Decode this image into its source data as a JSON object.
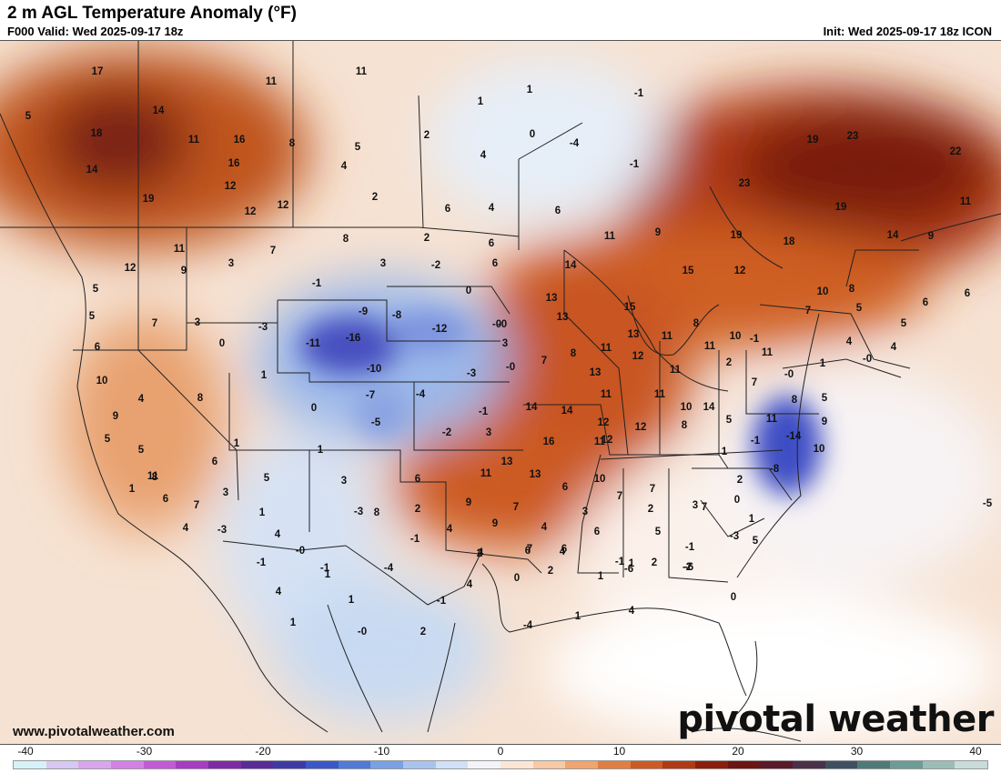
{
  "header": {
    "title": "2 m AGL Temperature Anomaly (°F)",
    "valid": "F000 Valid: Wed 2025-09-17 18z",
    "init": "Init: Wed 2025-09-17 18z ICON"
  },
  "footer": {
    "site": "www.pivotalweather.com",
    "logo": "pivotal weather"
  },
  "colorbar": {
    "ticks": [
      "-40",
      "-30",
      "-20",
      "-10",
      "0",
      "10",
      "20",
      "30",
      "40"
    ],
    "colors": [
      "#d6f2f8",
      "#d6c8f2",
      "#d9a6ee",
      "#d47fe6",
      "#c25ad8",
      "#a83bc2",
      "#7f2aa6",
      "#5a2a98",
      "#3d3aa8",
      "#3a58c8",
      "#4f7ad8",
      "#7aa0e6",
      "#a8c4ee",
      "#d0e0f6",
      "#f2f4f8",
      "#fbe6d6",
      "#f7c9a6",
      "#f0a46e",
      "#e27e40",
      "#cc5a24",
      "#b03a14",
      "#8c1e0e",
      "#6e1410",
      "#5a1a2a",
      "#4a3048",
      "#3e5060",
      "#4f7a78",
      "#6c9c94",
      "#9cbcb8",
      "#c8dcda"
    ]
  },
  "map_values": [
    {
      "v": "17"
    },
    {
      "v": "11"
    },
    {
      "v": "11"
    },
    {
      "v": "14"
    },
    {
      "v": "5"
    },
    {
      "v": "18"
    },
    {
      "v": "11"
    },
    {
      "v": "16"
    },
    {
      "v": "8"
    },
    {
      "v": "5"
    },
    {
      "v": "16"
    },
    {
      "v": "14"
    },
    {
      "v": "4"
    },
    {
      "v": "12"
    },
    {
      "v": "19"
    },
    {
      "v": "12"
    },
    {
      "v": "12"
    },
    {
      "v": "2"
    },
    {
      "v": "1"
    },
    {
      "v": "1"
    },
    {
      "v": "0"
    },
    {
      "v": "-4"
    },
    {
      "v": "-1"
    },
    {
      "v": "2"
    },
    {
      "v": "4"
    },
    {
      "v": "6"
    },
    {
      "v": "6"
    },
    {
      "v": "4"
    },
    {
      "v": "-1"
    },
    {
      "v": "19"
    },
    {
      "v": "23"
    },
    {
      "v": "22"
    },
    {
      "v": "23"
    },
    {
      "v": "19"
    },
    {
      "v": "11"
    },
    {
      "v": "19"
    },
    {
      "v": "18"
    },
    {
      "v": "14"
    },
    {
      "v": "9"
    },
    {
      "v": "11"
    },
    {
      "v": "12"
    },
    {
      "v": "9"
    },
    {
      "v": "5"
    },
    {
      "v": "3"
    },
    {
      "v": "7"
    },
    {
      "v": "8"
    },
    {
      "v": "2"
    },
    {
      "v": "6"
    },
    {
      "v": "3"
    },
    {
      "v": "-2"
    },
    {
      "v": "6"
    },
    {
      "v": "11"
    },
    {
      "v": "9"
    },
    {
      "v": "14"
    },
    {
      "v": "15"
    },
    {
      "v": "12"
    },
    {
      "v": "10"
    },
    {
      "v": "8"
    },
    {
      "v": "5"
    },
    {
      "v": "5"
    },
    {
      "v": "5"
    },
    {
      "v": "7"
    },
    {
      "v": "3"
    },
    {
      "v": "-1"
    },
    {
      "v": "0"
    },
    {
      "v": "13"
    },
    {
      "v": "15"
    },
    {
      "v": "6"
    },
    {
      "v": "6"
    },
    {
      "v": "-9"
    },
    {
      "v": "-8"
    },
    {
      "v": "-3"
    },
    {
      "v": "-16"
    },
    {
      "v": "-11"
    },
    {
      "v": "0"
    },
    {
      "v": "-12"
    },
    {
      "v": "-0"
    },
    {
      "v": "13"
    },
    {
      "v": "13"
    },
    {
      "v": "11"
    },
    {
      "v": "8"
    },
    {
      "v": "7"
    },
    {
      "v": "4"
    },
    {
      "v": "4"
    },
    {
      "v": "-1"
    },
    {
      "v": "-0"
    },
    {
      "v": "6"
    },
    {
      "v": "3"
    },
    {
      "v": "8"
    },
    {
      "v": "11"
    },
    {
      "v": "12"
    },
    {
      "v": "11"
    },
    {
      "v": "10"
    },
    {
      "v": "11"
    },
    {
      "v": "2"
    },
    {
      "v": "-0"
    },
    {
      "v": "1"
    },
    {
      "v": "10"
    },
    {
      "v": "-10"
    },
    {
      "v": "1"
    },
    {
      "v": "-3"
    },
    {
      "v": "-0"
    },
    {
      "v": "7"
    },
    {
      "v": "13"
    },
    {
      "v": "11"
    },
    {
      "v": "11"
    },
    {
      "v": "11"
    },
    {
      "v": "7"
    },
    {
      "v": "-0"
    },
    {
      "v": "8"
    },
    {
      "v": "4"
    },
    {
      "v": "-7"
    },
    {
      "v": "-4"
    },
    {
      "v": "0"
    },
    {
      "v": "-1"
    },
    {
      "v": "14"
    },
    {
      "v": "14"
    },
    {
      "v": "11"
    },
    {
      "v": "10"
    },
    {
      "v": "9"
    },
    {
      "v": "14"
    },
    {
      "v": "5"
    },
    {
      "v": "-5"
    },
    {
      "v": "-2"
    },
    {
      "v": "3"
    },
    {
      "v": "16"
    },
    {
      "v": "12"
    },
    {
      "v": "12"
    },
    {
      "v": "8"
    },
    {
      "v": "5"
    },
    {
      "v": "-14"
    },
    {
      "v": "9"
    },
    {
      "v": "5"
    },
    {
      "v": "6"
    },
    {
      "v": "5"
    },
    {
      "v": "1"
    },
    {
      "v": "13"
    },
    {
      "v": "13"
    },
    {
      "v": "11"
    },
    {
      "v": "8"
    },
    {
      "v": "1"
    },
    {
      "v": "-1"
    },
    {
      "v": "1"
    },
    {
      "v": "10"
    },
    {
      "v": "11"
    },
    {
      "v": "12"
    },
    {
      "v": "-8"
    },
    {
      "v": "6"
    },
    {
      "v": "3"
    },
    {
      "v": "5"
    },
    {
      "v": "1"
    },
    {
      "v": "3"
    },
    {
      "v": "11"
    },
    {
      "v": "9"
    },
    {
      "v": "10"
    },
    {
      "v": "7"
    },
    {
      "v": "6"
    },
    {
      "v": "7"
    },
    {
      "v": "7"
    },
    {
      "v": "2"
    },
    {
      "v": "2"
    },
    {
      "v": "3"
    },
    {
      "v": "7"
    },
    {
      "v": "6"
    },
    {
      "v": "8"
    },
    {
      "v": "9"
    },
    {
      "v": "4"
    },
    {
      "v": "4"
    },
    {
      "v": "3"
    },
    {
      "v": "0"
    },
    {
      "v": "1"
    },
    {
      "v": "8"
    },
    {
      "v": "2"
    },
    {
      "v": "-3"
    },
    {
      "v": "2"
    },
    {
      "v": "7"
    },
    {
      "v": "6"
    },
    {
      "v": "6"
    },
    {
      "v": "5"
    },
    {
      "v": "7"
    },
    {
      "v": "4"
    },
    {
      "v": "4"
    },
    {
      "v": "-3"
    },
    {
      "v": "-0"
    },
    {
      "v": "-1"
    },
    {
      "v": "4"
    },
    {
      "v": "6"
    },
    {
      "v": "4"
    },
    {
      "v": "2"
    },
    {
      "v": "1"
    },
    {
      "v": "-1"
    },
    {
      "v": "-1"
    },
    {
      "v": "-5"
    },
    {
      "v": "1"
    },
    {
      "v": "5"
    },
    {
      "v": "4"
    },
    {
      "v": "0"
    },
    {
      "v": "1"
    },
    {
      "v": "-3"
    },
    {
      "v": "2"
    },
    {
      "v": "-4"
    },
    {
      "v": "-1"
    },
    {
      "v": "0"
    },
    {
      "v": "-1"
    },
    {
      "v": "-2"
    },
    {
      "v": "-6"
    },
    {
      "v": "-6"
    },
    {
      "v": "-4"
    },
    {
      "v": "1"
    },
    {
      "v": "4"
    },
    {
      "v": "4"
    },
    {
      "v": "1"
    },
    {
      "v": "1"
    },
    {
      "v": "1"
    },
    {
      "v": "-0"
    },
    {
      "v": "2"
    },
    {
      "v": "-1"
    }
  ]
}
